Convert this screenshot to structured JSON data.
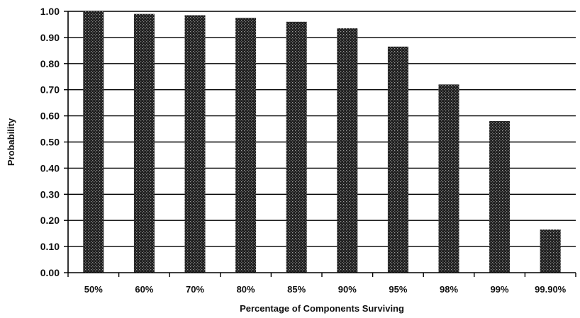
{
  "chart_data": {
    "type": "bar",
    "title": "",
    "xlabel": "Percentage of Components Surviving",
    "ylabel": "Probability",
    "categories": [
      "50%",
      "60%",
      "70%",
      "80%",
      "85%",
      "90%",
      "95%",
      "98%",
      "99%",
      "99.90%"
    ],
    "values": [
      1.0,
      0.99,
      0.985,
      0.975,
      0.96,
      0.935,
      0.865,
      0.72,
      0.58,
      0.165
    ],
    "ylim": [
      0,
      1.0
    ],
    "yticks": [
      "0.00",
      "0.10",
      "0.20",
      "0.30",
      "0.40",
      "0.50",
      "0.60",
      "0.70",
      "0.80",
      "0.90",
      "1.00"
    ],
    "grid": true,
    "legend": "none",
    "colors": {
      "bar_fill": "#1c1c1c",
      "bar_stipple": "#8a8a8a",
      "grid": "#000000",
      "axis": "#000000"
    }
  }
}
